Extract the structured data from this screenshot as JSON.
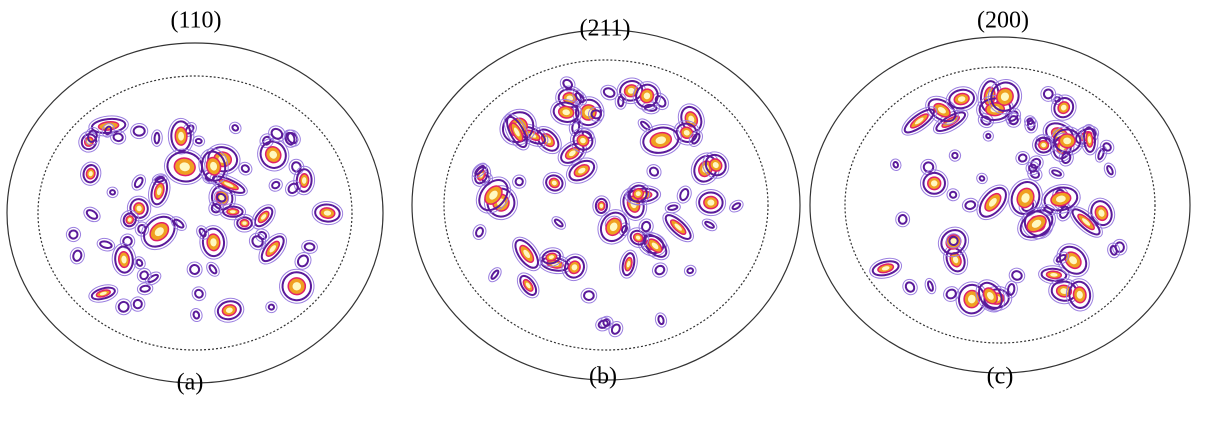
{
  "panels": [
    {
      "title": "(110)",
      "label": "(a)"
    },
    {
      "title": "(211)",
      "label": "(b)"
    },
    {
      "title": "(200)",
      "label": "(c)"
    }
  ]
}
